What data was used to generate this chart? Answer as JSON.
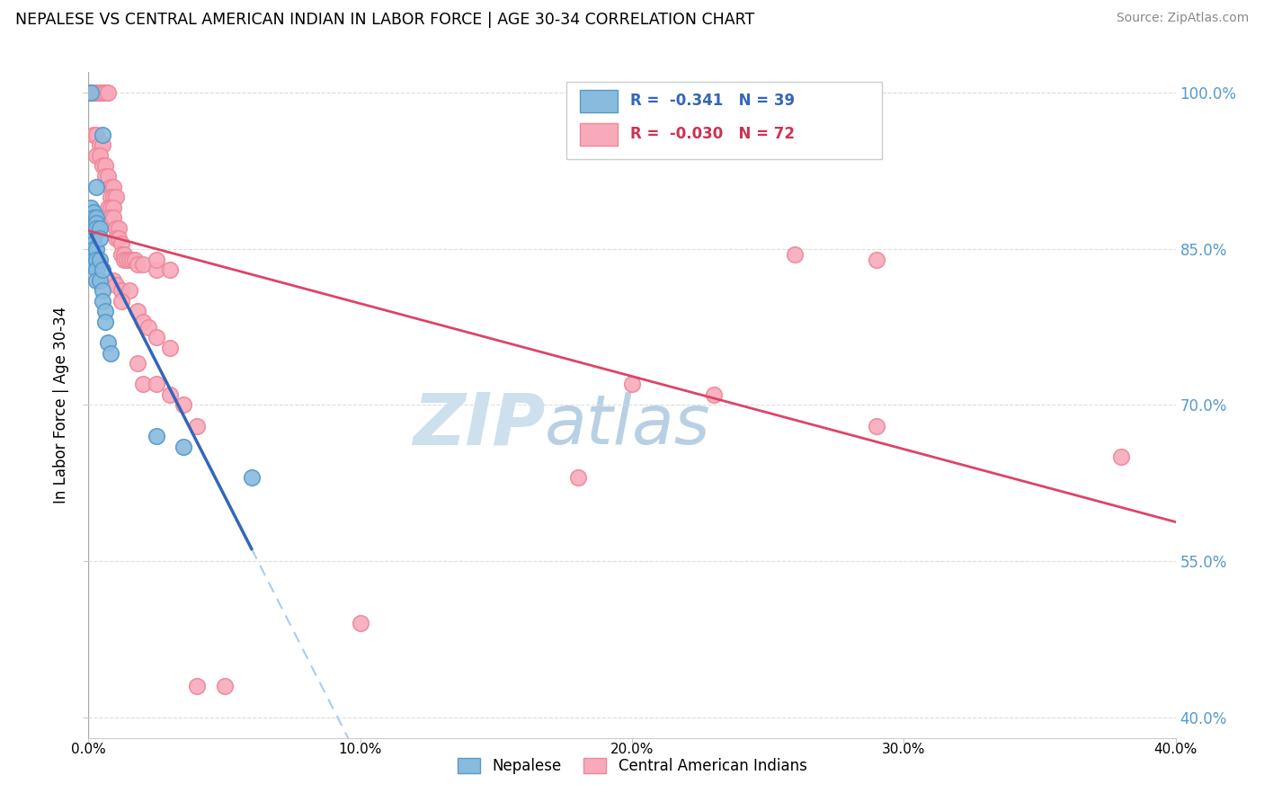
{
  "title": "NEPALESE VS CENTRAL AMERICAN INDIAN IN LABOR FORCE | AGE 30-34 CORRELATION CHART",
  "source": "Source: ZipAtlas.com",
  "ylabel": "In Labor Force | Age 30-34",
  "xlim": [
    0.0,
    0.4
  ],
  "ylim": [
    0.38,
    1.02
  ],
  "ytick_labels": [
    "40.0%",
    "55.0%",
    "70.0%",
    "85.0%",
    "100.0%"
  ],
  "ytick_values": [
    0.4,
    0.55,
    0.7,
    0.85,
    1.0
  ],
  "xtick_labels": [
    "0.0%",
    "10.0%",
    "20.0%",
    "30.0%",
    "40.0%"
  ],
  "xtick_values": [
    0.0,
    0.1,
    0.2,
    0.3,
    0.4
  ],
  "legend_bottom": [
    "Nepalese",
    "Central American Indians"
  ],
  "nepalese_color": "#88bbdd",
  "central_color": "#f8aabb",
  "nepalese_edge": "#5599cc",
  "central_edge": "#ee8899",
  "reg_blue": "#3366bb",
  "reg_blue_dash": "#aaccee",
  "reg_pink": "#dd4466",
  "background_color": "#ffffff",
  "grid_color": "#dddddd",
  "watermark_zip": "ZIP",
  "watermark_atlas": "atlas",
  "watermark_color_zip": "#c8dff0",
  "watermark_color_atlas": "#b8cfe8",
  "nepalese_scatter": [
    [
      0.001,
      1.0
    ],
    [
      0.005,
      0.96
    ],
    [
      0.003,
      0.91
    ],
    [
      0.001,
      0.89
    ],
    [
      0.001,
      0.88
    ],
    [
      0.001,
      0.88
    ],
    [
      0.001,
      0.875
    ],
    [
      0.002,
      0.885
    ],
    [
      0.002,
      0.88
    ],
    [
      0.002,
      0.875
    ],
    [
      0.002,
      0.87
    ],
    [
      0.002,
      0.865
    ],
    [
      0.002,
      0.86
    ],
    [
      0.002,
      0.855
    ],
    [
      0.002,
      0.85
    ],
    [
      0.002,
      0.845
    ],
    [
      0.002,
      0.84
    ],
    [
      0.002,
      0.835
    ],
    [
      0.003,
      0.88
    ],
    [
      0.003,
      0.875
    ],
    [
      0.003,
      0.87
    ],
    [
      0.003,
      0.85
    ],
    [
      0.003,
      0.84
    ],
    [
      0.003,
      0.83
    ],
    [
      0.003,
      0.82
    ],
    [
      0.004,
      0.87
    ],
    [
      0.004,
      0.86
    ],
    [
      0.004,
      0.84
    ],
    [
      0.004,
      0.82
    ],
    [
      0.005,
      0.83
    ],
    [
      0.005,
      0.81
    ],
    [
      0.005,
      0.8
    ],
    [
      0.006,
      0.79
    ],
    [
      0.006,
      0.78
    ],
    [
      0.007,
      0.76
    ],
    [
      0.008,
      0.75
    ],
    [
      0.025,
      0.67
    ],
    [
      0.035,
      0.66
    ],
    [
      0.06,
      0.63
    ]
  ],
  "central_scatter": [
    [
      0.001,
      1.0
    ],
    [
      0.002,
      1.0
    ],
    [
      0.003,
      1.0
    ],
    [
      0.003,
      1.0
    ],
    [
      0.004,
      1.0
    ],
    [
      0.004,
      1.0
    ],
    [
      0.005,
      1.0
    ],
    [
      0.006,
      1.0
    ],
    [
      0.006,
      1.0
    ],
    [
      0.007,
      1.0
    ],
    [
      0.002,
      0.96
    ],
    [
      0.003,
      0.96
    ],
    [
      0.004,
      0.95
    ],
    [
      0.005,
      0.95
    ],
    [
      0.003,
      0.94
    ],
    [
      0.004,
      0.94
    ],
    [
      0.005,
      0.93
    ],
    [
      0.006,
      0.93
    ],
    [
      0.006,
      0.92
    ],
    [
      0.007,
      0.92
    ],
    [
      0.008,
      0.91
    ],
    [
      0.009,
      0.91
    ],
    [
      0.008,
      0.9
    ],
    [
      0.009,
      0.9
    ],
    [
      0.01,
      0.9
    ],
    [
      0.007,
      0.89
    ],
    [
      0.008,
      0.89
    ],
    [
      0.009,
      0.89
    ],
    [
      0.007,
      0.88
    ],
    [
      0.008,
      0.88
    ],
    [
      0.008,
      0.875
    ],
    [
      0.009,
      0.88
    ],
    [
      0.01,
      0.87
    ],
    [
      0.011,
      0.87
    ],
    [
      0.01,
      0.86
    ],
    [
      0.011,
      0.86
    ],
    [
      0.012,
      0.855
    ],
    [
      0.012,
      0.845
    ],
    [
      0.013,
      0.845
    ],
    [
      0.013,
      0.84
    ],
    [
      0.014,
      0.84
    ],
    [
      0.015,
      0.84
    ],
    [
      0.016,
      0.84
    ],
    [
      0.017,
      0.84
    ],
    [
      0.018,
      0.835
    ],
    [
      0.02,
      0.835
    ],
    [
      0.025,
      0.83
    ],
    [
      0.03,
      0.83
    ],
    [
      0.025,
      0.84
    ],
    [
      0.009,
      0.82
    ],
    [
      0.01,
      0.815
    ],
    [
      0.012,
      0.81
    ],
    [
      0.015,
      0.81
    ],
    [
      0.012,
      0.8
    ],
    [
      0.018,
      0.79
    ],
    [
      0.02,
      0.78
    ],
    [
      0.022,
      0.775
    ],
    [
      0.025,
      0.765
    ],
    [
      0.03,
      0.755
    ],
    [
      0.018,
      0.74
    ],
    [
      0.02,
      0.72
    ],
    [
      0.025,
      0.72
    ],
    [
      0.03,
      0.71
    ],
    [
      0.035,
      0.7
    ],
    [
      0.04,
      0.68
    ],
    [
      0.26,
      0.845
    ],
    [
      0.29,
      0.84
    ],
    [
      0.2,
      0.72
    ],
    [
      0.23,
      0.71
    ],
    [
      0.29,
      0.68
    ],
    [
      0.38,
      0.65
    ],
    [
      0.18,
      0.63
    ],
    [
      0.04,
      0.43
    ],
    [
      0.05,
      0.43
    ],
    [
      0.1,
      0.49
    ]
  ]
}
